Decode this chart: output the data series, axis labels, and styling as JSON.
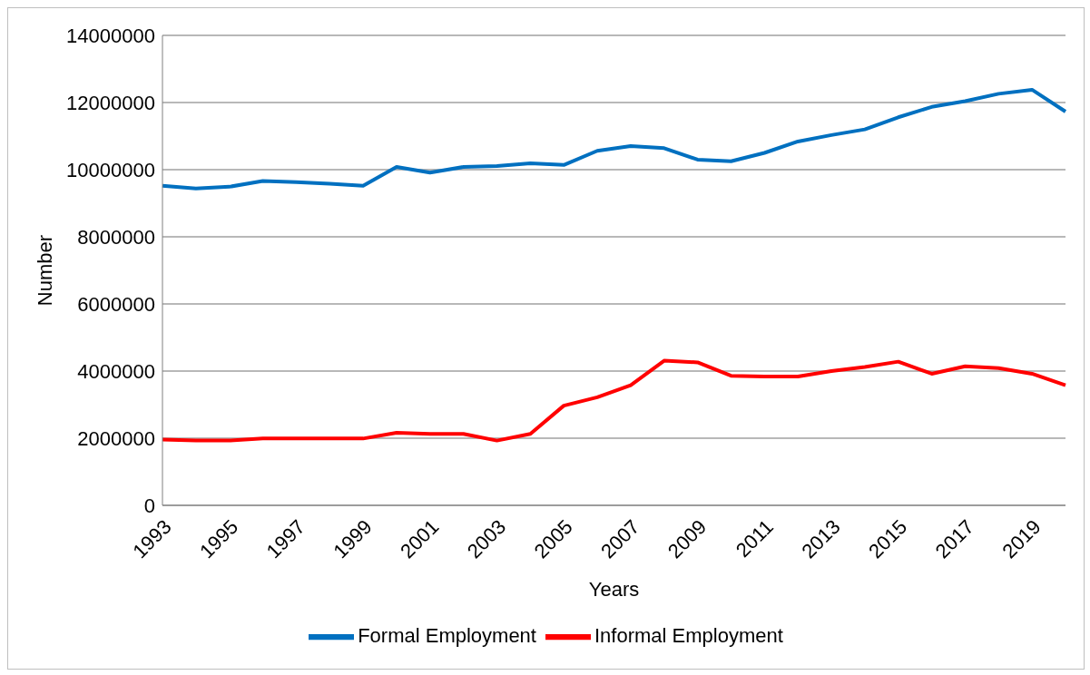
{
  "chart_data": {
    "type": "line",
    "xlabel": "Years",
    "ylabel": "Number",
    "categories": [
      "1993",
      null,
      "1995",
      null,
      "1997",
      null,
      "1999",
      null,
      "2001",
      null,
      "2003",
      null,
      "2005",
      null,
      "2007",
      null,
      "2009",
      null,
      "2011",
      null,
      "2013",
      null,
      "2015",
      null,
      "2017",
      null,
      "2019",
      null
    ],
    "series": [
      {
        "name": "Formal Employment",
        "color": "#0070c0",
        "values": [
          9520000,
          9440000,
          9490000,
          9660000,
          9630000,
          9580000,
          9520000,
          10080000,
          9910000,
          10080000,
          10110000,
          10190000,
          10140000,
          10560000,
          10700000,
          10640000,
          10300000,
          10250000,
          10500000,
          10840000,
          11030000,
          11200000,
          11560000,
          11870000,
          12040000,
          12260000,
          12380000,
          11730000
        ]
      },
      {
        "name": "Informal Employment",
        "color": "#ff0000",
        "values": [
          1960000,
          1930000,
          1930000,
          1990000,
          1990000,
          1990000,
          1990000,
          2160000,
          2130000,
          2130000,
          1930000,
          2130000,
          2970000,
          3220000,
          3580000,
          4310000,
          4260000,
          3860000,
          3840000,
          3840000,
          4000000,
          4120000,
          4280000,
          3920000,
          4140000,
          4090000,
          3920000,
          3580000
        ]
      }
    ],
    "ylim": [
      0,
      14000000
    ],
    "yticks": [
      0,
      2000000,
      4000000,
      6000000,
      8000000,
      10000000,
      12000000,
      14000000
    ],
    "grid": "y",
    "legend": "bottom",
    "marker": "none",
    "line_style": "solid"
  }
}
